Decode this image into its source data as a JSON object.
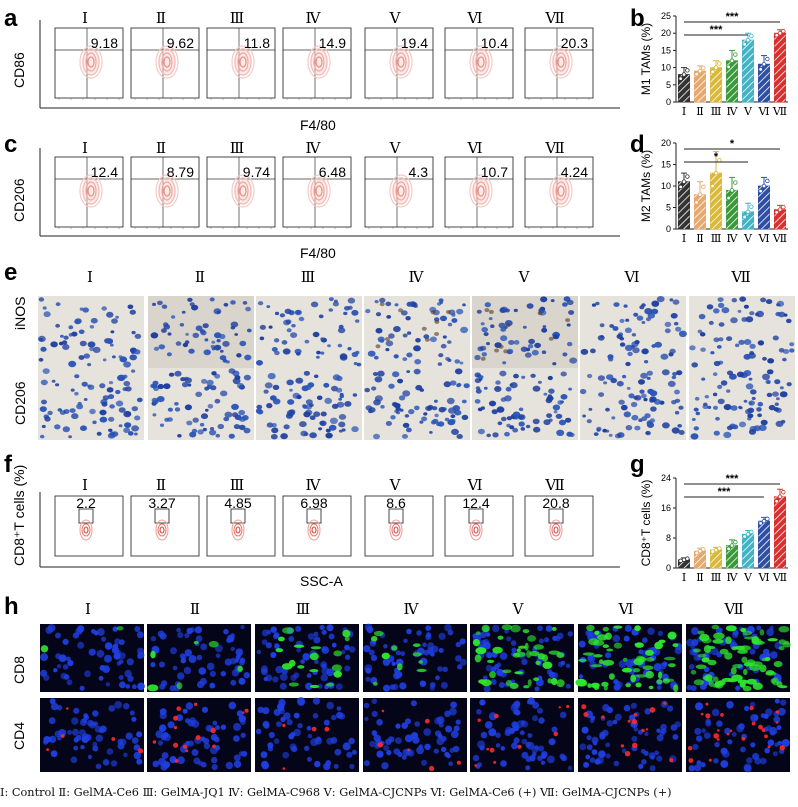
{
  "panel_labels": {
    "a": "a",
    "b": "b",
    "c": "c",
    "d": "d",
    "e": "e",
    "f": "f",
    "g": "g",
    "h": "h"
  },
  "groups": [
    "Ⅰ",
    "Ⅱ",
    "Ⅲ",
    "Ⅳ",
    "Ⅴ",
    "Ⅵ",
    "Ⅶ"
  ],
  "panel_a": {
    "ylabel": "CD86",
    "xlabel": "F4/80",
    "values": [
      "9.18",
      "9.62",
      "11.8",
      "14.9",
      "19.4",
      "10.4",
      "20.3"
    ]
  },
  "panel_c": {
    "ylabel": "CD206",
    "xlabel": "F4/80",
    "values": [
      "12.4",
      "8.79",
      "9.74",
      "6.48",
      "4.3",
      "10.7",
      "4.24"
    ]
  },
  "panel_e": {
    "row_labels": [
      "iNOS",
      "CD206"
    ]
  },
  "panel_f": {
    "ylabel": "CD8⁺T cells (%)",
    "xlabel": "SSC-A",
    "values": [
      "2.2",
      "3.27",
      "4.85",
      "6.98",
      "8.6",
      "12.4",
      "20.8"
    ]
  },
  "panel_h": {
    "row_labels": [
      "CD8",
      "CD4"
    ]
  },
  "legend": "Ⅰ: Control  Ⅱ: GelMA-Ce6  Ⅲ: GelMA-JQ1  Ⅳ: GelMA-C968  Ⅴ: GelMA-CJCNPs  Ⅵ: GelMA-Ce6 (+)  Ⅶ: GelMA-CJCNPs (+)",
  "colors": [
    "#333333",
    "#e6a86c",
    "#d9b83a",
    "#3a9a3a",
    "#41b3c4",
    "#2e4fa3",
    "#d9302f"
  ],
  "chart_data": [
    {
      "type": "bar",
      "panel": "b",
      "ylabel": "M1 TAMs (%)",
      "categories": [
        "Ⅰ",
        "Ⅱ",
        "Ⅲ",
        "Ⅳ",
        "Ⅴ",
        "Ⅵ",
        "Ⅶ"
      ],
      "values": [
        8,
        9,
        10,
        12,
        18,
        11,
        20
      ],
      "errors": [
        2,
        1.5,
        2,
        3,
        2,
        2.5,
        1
      ],
      "ylim": [
        0,
        25
      ],
      "yticks": [
        0,
        5,
        10,
        15,
        20,
        25
      ],
      "significance": [
        {
          "from": "Ⅰ",
          "to": "Ⅴ",
          "label": "***"
        },
        {
          "from": "Ⅰ",
          "to": "Ⅶ",
          "label": "***"
        }
      ]
    },
    {
      "type": "bar",
      "panel": "d",
      "ylabel": "M2 TAMs (%)",
      "categories": [
        "Ⅰ",
        "Ⅱ",
        "Ⅲ",
        "Ⅳ",
        "Ⅴ",
        "Ⅵ",
        "Ⅶ"
      ],
      "values": [
        11,
        8,
        13,
        9,
        4,
        10,
        4.5
      ],
      "errors": [
        2,
        3,
        5,
        3,
        2,
        2,
        1
      ],
      "ylim": [
        0,
        20
      ],
      "yticks": [
        0,
        5,
        10,
        15,
        20
      ],
      "significance": [
        {
          "from": "Ⅰ",
          "to": "Ⅴ",
          "label": "*"
        },
        {
          "from": "Ⅰ",
          "to": "Ⅶ",
          "label": "*"
        }
      ]
    },
    {
      "type": "bar",
      "panel": "g",
      "ylabel": "CD8⁺T cells (%)",
      "categories": [
        "Ⅰ",
        "Ⅱ",
        "Ⅲ",
        "Ⅳ",
        "Ⅴ",
        "Ⅵ",
        "Ⅶ"
      ],
      "values": [
        2.2,
        4.5,
        4.8,
        6,
        9,
        12.5,
        19
      ],
      "errors": [
        0.5,
        0.8,
        0.7,
        1.5,
        1,
        1,
        2
      ],
      "ylim": [
        0,
        24
      ],
      "yticks": [
        0,
        8,
        16,
        24
      ],
      "significance": [
        {
          "from": "Ⅰ",
          "to": "Ⅵ",
          "label": "***"
        },
        {
          "from": "Ⅰ",
          "to": "Ⅶ",
          "label": "***"
        }
      ]
    }
  ]
}
